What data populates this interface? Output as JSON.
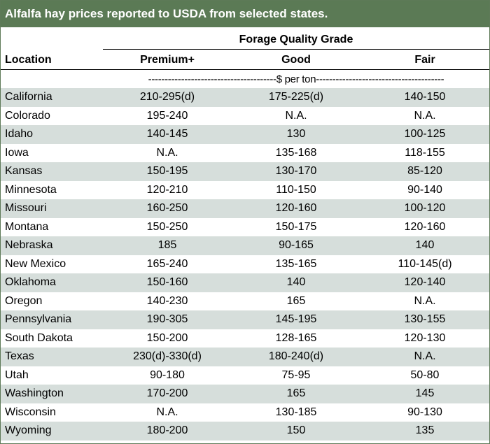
{
  "title": "Alfalfa hay prices reported to USDA from selected states.",
  "group_header": "Forage Quality Grade",
  "columns": {
    "location": "Location",
    "premium": "Premium+",
    "good": "Good",
    "fair": "Fair"
  },
  "units_line": "---------------------------------------$ per ton---------------------------------------",
  "rows": [
    {
      "location": "California",
      "premium": "210-295(d)",
      "good": "175-225(d)",
      "fair": "140-150"
    },
    {
      "location": "Colorado",
      "premium": "195-240",
      "good": "N.A.",
      "fair": "N.A."
    },
    {
      "location": "Idaho",
      "premium": "140-145",
      "good": "130",
      "fair": "100-125"
    },
    {
      "location": "Iowa",
      "premium": "N.A.",
      "good": "135-168",
      "fair": "118-155"
    },
    {
      "location": "Kansas",
      "premium": "150-195",
      "good": "130-170",
      "fair": "85-120"
    },
    {
      "location": "Minnesota",
      "premium": "120-210",
      "good": "110-150",
      "fair": "90-140"
    },
    {
      "location": "Missouri",
      "premium": "160-250",
      "good": "120-160",
      "fair": "100-120"
    },
    {
      "location": "Montana",
      "premium": "150-250",
      "good": "150-175",
      "fair": "120-160"
    },
    {
      "location": "Nebraska",
      "premium": "185",
      "good": "90-165",
      "fair": "140"
    },
    {
      "location": "New Mexico",
      "premium": "165-240",
      "good": "135-165",
      "fair": "110-145(d)"
    },
    {
      "location": "Oklahoma",
      "premium": "150-160",
      "good": "140",
      "fair": "120-140"
    },
    {
      "location": "Oregon",
      "premium": "140-230",
      "good": "165",
      "fair": "N.A."
    },
    {
      "location": "Pennsylvania",
      "premium": "190-305",
      "good": "145-195",
      "fair": "130-155"
    },
    {
      "location": "South Dakota",
      "premium": "150-200",
      "good": "128-165",
      "fair": "120-130"
    },
    {
      "location": "Texas",
      "premium": "230(d)-330(d)",
      "good": "180-240(d)",
      "fair": "N.A."
    },
    {
      "location": "Utah",
      "premium": "90-180",
      "good": "75-95",
      "fair": "50-80"
    },
    {
      "location": "Washington",
      "premium": "170-200",
      "good": "165",
      "fair": "145"
    },
    {
      "location": "Wisconsin",
      "premium": "N.A.",
      "good": "130-185",
      "fair": "90-130"
    },
    {
      "location": "Wyoming",
      "premium": "180-200",
      "good": "150",
      "fair": "135"
    }
  ]
}
